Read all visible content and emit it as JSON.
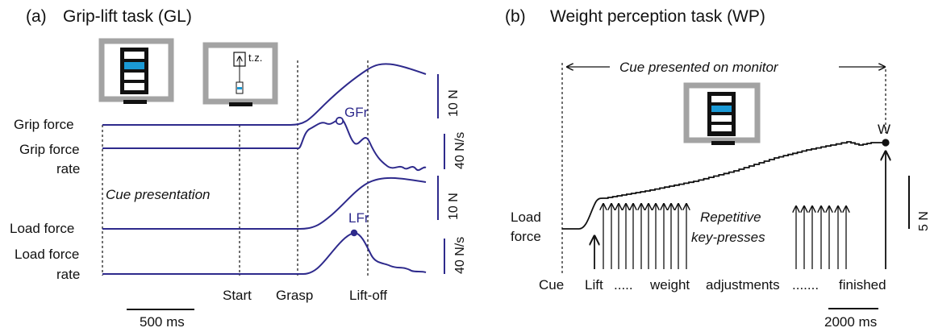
{
  "panel_a": {
    "label": "(a)",
    "title": "Grip-lift task (GL)",
    "trace_labels": {
      "grip_force": "Grip force",
      "grip_force_rate_1": "Grip force",
      "grip_force_rate_2": "rate",
      "load_force": "Load force",
      "load_force_rate_1": "Load force",
      "load_force_rate_2": "rate"
    },
    "cue_text": "Cue presentation",
    "events": [
      "Start",
      "Grasp",
      "Lift-off"
    ],
    "peak_labels": {
      "grip": "GFr",
      "load": "LFr"
    },
    "scale_bars": [
      "10 N",
      "40 N/s",
      "10 N",
      "40 N/s"
    ],
    "time_scale": "500 ms",
    "target_zone_label": "t.z."
  },
  "panel_b": {
    "label": "(b)",
    "title": "Weight perception task (WP)",
    "cue_banner": "Cue presented on monitor",
    "load_force_1": "Load",
    "load_force_2": "force",
    "keypress_1": "Repetitive",
    "keypress_2": "key-presses",
    "end_marker": "W",
    "timeline": [
      "Cue",
      "Lift",
      ".....",
      "weight",
      "adjustments",
      ".......",
      "finished"
    ],
    "force_scale": "5 N",
    "time_scale": "2000 ms"
  },
  "colors": {
    "trace": "#2e2a8c",
    "monitor_frame": "#a3a3a3",
    "highlight_bar": "#1b9ad6",
    "text": "#111111"
  }
}
